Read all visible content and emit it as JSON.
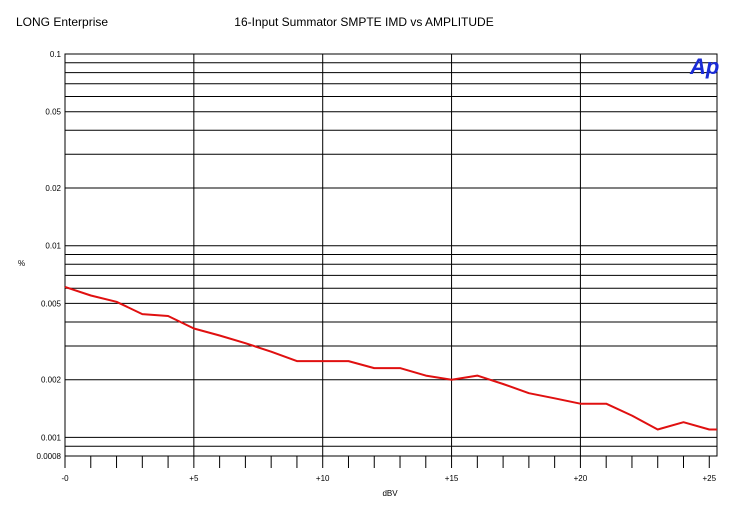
{
  "header": {
    "left_text": "LONG Enterprise",
    "title": "16-Input Summator SMPTE IMD vs AMPLITUDE"
  },
  "logo_text": "Ap",
  "colors": {
    "series": "#e01010",
    "grid": "#000000",
    "logo": "#1a2bd6"
  },
  "chart_data": {
    "type": "line",
    "title": "16-Input Summator SMPTE IMD vs AMPLITUDE",
    "xlabel": "dBV",
    "ylabel": "%",
    "xlim": [
      0,
      25.3
    ],
    "ylim": [
      0.0008,
      0.1
    ],
    "yscale": "log",
    "grid": true,
    "x_ticks": [
      {
        "value": 0,
        "label": "-0"
      },
      {
        "value": 5,
        "label": "+5"
      },
      {
        "value": 10,
        "label": "+10"
      },
      {
        "value": 15,
        "label": "+15"
      },
      {
        "value": 20,
        "label": "+20"
      },
      {
        "value": 25,
        "label": "+25"
      }
    ],
    "y_ticks": [
      {
        "value": 0.1,
        "label": "0.1"
      },
      {
        "value": 0.05,
        "label": "0.05"
      },
      {
        "value": 0.02,
        "label": "0.02"
      },
      {
        "value": 0.01,
        "label": "0.01"
      },
      {
        "value": 0.005,
        "label": "0.005"
      },
      {
        "value": 0.002,
        "label": "0.002"
      },
      {
        "value": 0.001,
        "label": "0.001"
      },
      {
        "value": 0.0008,
        "label": "0.0008"
      }
    ],
    "series": [
      {
        "x": [
          0,
          1,
          2,
          3,
          4,
          5,
          6,
          7,
          8,
          9,
          10,
          11,
          12,
          13,
          14,
          15,
          16,
          17,
          18,
          19,
          20,
          21,
          22,
          23,
          24,
          25,
          25.3
        ],
        "y": [
          0.0061,
          0.0055,
          0.0051,
          0.0044,
          0.0043,
          0.0037,
          0.0034,
          0.0031,
          0.0028,
          0.0025,
          0.0025,
          0.0025,
          0.0023,
          0.0023,
          0.0021,
          0.002,
          0.0021,
          0.0019,
          0.0017,
          0.0016,
          0.0015,
          0.0015,
          0.0013,
          0.0011,
          0.0012,
          0.0011,
          0.0011
        ]
      }
    ]
  }
}
